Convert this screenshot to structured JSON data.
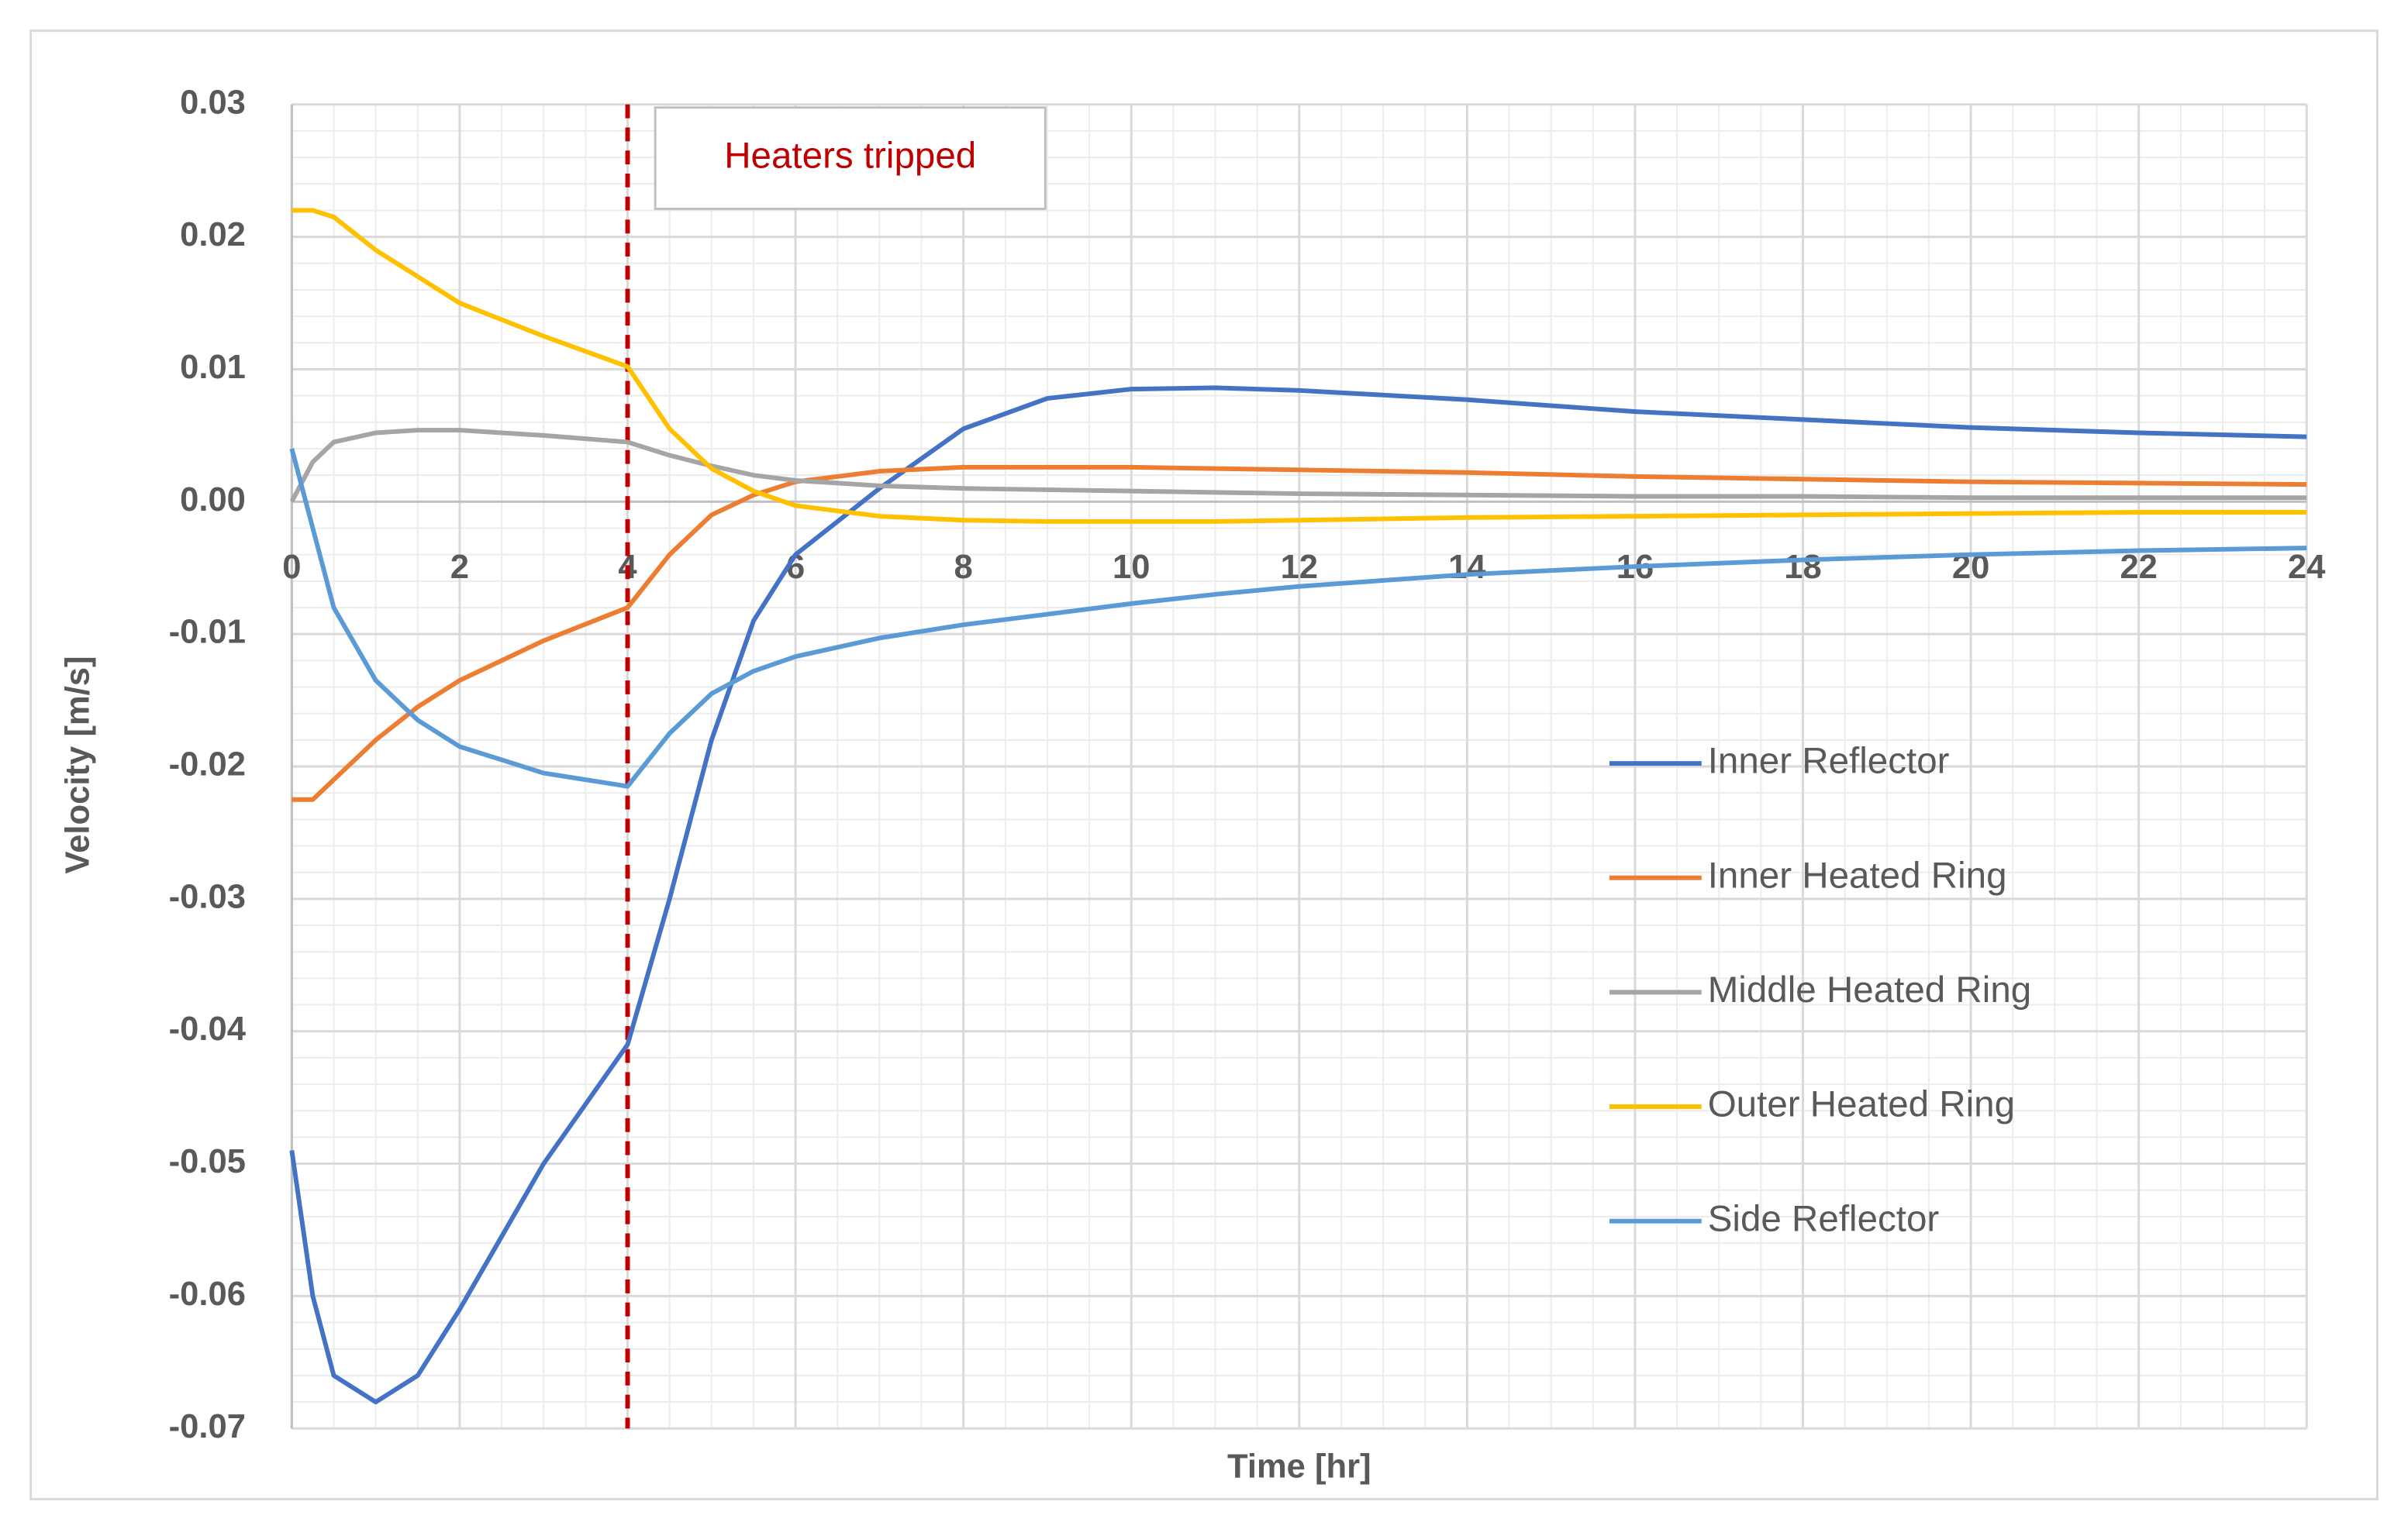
{
  "chart_data": {
    "type": "line",
    "xlabel": "Time [hr]",
    "ylabel": "Velocity [m/s]",
    "x": [
      0,
      0.25,
      0.5,
      1,
      1.5,
      2,
      3,
      4,
      4.5,
      5,
      5.5,
      6,
      7,
      8,
      9,
      10,
      11,
      12,
      14,
      16,
      18,
      20,
      22,
      24
    ],
    "series": [
      {
        "name": "Inner Reflector",
        "color": "#4472c4",
        "values": [
          -0.049,
          -0.06,
          -0.066,
          -0.068,
          -0.066,
          -0.061,
          -0.05,
          -0.041,
          -0.03,
          -0.018,
          -0.009,
          -0.004,
          0.001,
          0.0055,
          0.0078,
          0.0085,
          0.0086,
          0.0084,
          0.0077,
          0.0068,
          0.0062,
          0.0056,
          0.0052,
          0.0049
        ]
      },
      {
        "name": "Inner Heated Ring",
        "color": "#ed7d31",
        "values": [
          -0.0225,
          -0.0225,
          -0.021,
          -0.018,
          -0.0155,
          -0.0135,
          -0.0105,
          -0.008,
          -0.004,
          -0.001,
          0.0005,
          0.0015,
          0.0023,
          0.0026,
          0.0026,
          0.0026,
          0.0025,
          0.0024,
          0.0022,
          0.0019,
          0.0017,
          0.0015,
          0.0014,
          0.0013
        ]
      },
      {
        "name": "Middle Heated Ring",
        "color": "#a5a5a5",
        "values": [
          0.0,
          0.003,
          0.0045,
          0.0052,
          0.0054,
          0.0054,
          0.005,
          0.0045,
          0.0035,
          0.0027,
          0.002,
          0.0016,
          0.0012,
          0.001,
          0.0009,
          0.0008,
          0.0007,
          0.0006,
          0.0005,
          0.0004,
          0.0004,
          0.0003,
          0.0003,
          0.0003
        ]
      },
      {
        "name": "Outer Heated Ring",
        "color": "#ffc000",
        "values": [
          0.022,
          0.022,
          0.0215,
          0.019,
          0.017,
          0.015,
          0.0125,
          0.0102,
          0.0055,
          0.0025,
          0.0008,
          -0.0003,
          -0.0011,
          -0.0014,
          -0.0015,
          -0.0015,
          -0.0015,
          -0.0014,
          -0.0012,
          -0.0011,
          -0.001,
          -0.0009,
          -0.0008,
          -0.0008
        ]
      },
      {
        "name": "Side Reflector",
        "color": "#5b9bd5",
        "values": [
          0.004,
          -0.002,
          -0.008,
          -0.0135,
          -0.0165,
          -0.0185,
          -0.0205,
          -0.0215,
          -0.0175,
          -0.0145,
          -0.0128,
          -0.0117,
          -0.0103,
          -0.0093,
          -0.0085,
          -0.0077,
          -0.007,
          -0.0064,
          -0.0055,
          -0.0049,
          -0.0044,
          -0.004,
          -0.0037,
          -0.0035
        ]
      }
    ],
    "xlim": [
      0,
      24
    ],
    "xticks": [
      0,
      2,
      4,
      6,
      8,
      10,
      12,
      14,
      16,
      18,
      20,
      22,
      24
    ],
    "ylim": [
      -0.07,
      0.03
    ],
    "yticks": [
      -0.07,
      -0.06,
      -0.05,
      -0.04,
      -0.03,
      -0.02,
      -0.01,
      {
        "value": 0,
        "label": "0.00"
      },
      0.01,
      0.02,
      0.03
    ],
    "grid": true,
    "minor_grid": true,
    "legend": "right",
    "annotations": [
      {
        "text": "Heaters tripped",
        "x": 4,
        "color": "#c00000"
      }
    ]
  }
}
